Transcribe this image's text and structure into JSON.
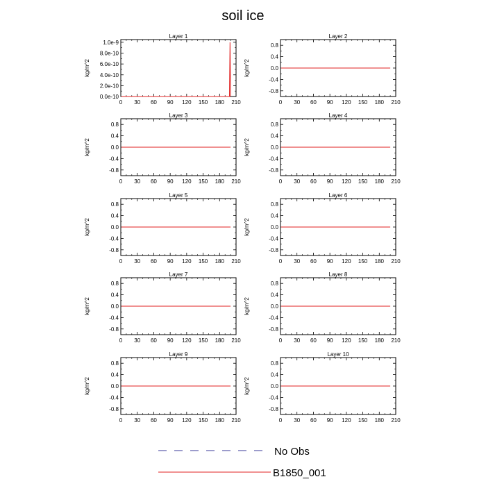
{
  "title": "soil ice",
  "legend": [
    {
      "label": "No Obs",
      "color": "#3a3a9a",
      "style": "dashed"
    },
    {
      "label": "B1850_001",
      "color": "#e02020",
      "style": "solid"
    }
  ],
  "chart_data": [
    {
      "type": "line",
      "title": "Layer 1",
      "ylabel": "kg/m^2",
      "xlim": [
        0,
        210
      ],
      "xticks": [
        0,
        30,
        60,
        90,
        120,
        150,
        180,
        210
      ],
      "ylim": [
        0,
        1.05e-09
      ],
      "yticks": [
        0,
        2e-10,
        4e-10,
        6e-10,
        8e-10,
        1e-09
      ],
      "ytick_labels": [
        "0.0e-10",
        "2.0e-10",
        "4.0e-10",
        "6.0e-10",
        "8.0e-10",
        "1.0e-9"
      ],
      "series": [
        {
          "name": "B1850_001",
          "x": [
            1,
            195,
            196,
            197,
            198,
            199,
            200
          ],
          "y": [
            0,
            0,
            0,
            0,
            0,
            1e-09,
            0
          ]
        }
      ]
    },
    {
      "type": "line",
      "title": "Layer 2",
      "ylabel": "kg/m^2",
      "xlim": [
        0,
        210
      ],
      "xticks": [
        0,
        30,
        60,
        90,
        120,
        150,
        180,
        210
      ],
      "ylim": [
        -1,
        1
      ],
      "yticks": [
        -0.8,
        -0.4,
        0,
        0.4,
        0.8
      ],
      "ytick_labels": [
        "-0.8",
        "-0.4",
        "0.0",
        "0.4",
        "0.8"
      ],
      "series": [
        {
          "name": "B1850_001",
          "x": [
            1,
            200
          ],
          "y": [
            0,
            0
          ]
        }
      ]
    },
    {
      "type": "line",
      "title": "Layer 3",
      "ylabel": "kg/m^2",
      "xlim": [
        0,
        210
      ],
      "xticks": [
        0,
        30,
        60,
        90,
        120,
        150,
        180,
        210
      ],
      "ylim": [
        -1,
        1
      ],
      "yticks": [
        -0.8,
        -0.4,
        0,
        0.4,
        0.8
      ],
      "ytick_labels": [
        "-0.8",
        "-0.4",
        "0.0",
        "0.4",
        "0.8"
      ],
      "series": [
        {
          "name": "B1850_001",
          "x": [
            1,
            200
          ],
          "y": [
            0,
            0
          ]
        }
      ]
    },
    {
      "type": "line",
      "title": "Layer 4",
      "ylabel": "kg/m^2",
      "xlim": [
        0,
        210
      ],
      "xticks": [
        0,
        30,
        60,
        90,
        120,
        150,
        180,
        210
      ],
      "ylim": [
        -1,
        1
      ],
      "yticks": [
        -0.8,
        -0.4,
        0,
        0.4,
        0.8
      ],
      "ytick_labels": [
        "-0.8",
        "-0.4",
        "0.0",
        "0.4",
        "0.8"
      ],
      "series": [
        {
          "name": "B1850_001",
          "x": [
            1,
            200
          ],
          "y": [
            0,
            0
          ]
        }
      ]
    },
    {
      "type": "line",
      "title": "Layer 5",
      "ylabel": "kg/m^2",
      "xlim": [
        0,
        210
      ],
      "xticks": [
        0,
        30,
        60,
        90,
        120,
        150,
        180,
        210
      ],
      "ylim": [
        -1,
        1
      ],
      "yticks": [
        -0.8,
        -0.4,
        0,
        0.4,
        0.8
      ],
      "ytick_labels": [
        "-0.8",
        "-0.4",
        "0.0",
        "0.4",
        "0.8"
      ],
      "series": [
        {
          "name": "B1850_001",
          "x": [
            1,
            200
          ],
          "y": [
            0,
            0
          ]
        }
      ]
    },
    {
      "type": "line",
      "title": "Layer 6",
      "ylabel": "kg/m^2",
      "xlim": [
        0,
        210
      ],
      "xticks": [
        0,
        30,
        60,
        90,
        120,
        150,
        180,
        210
      ],
      "ylim": [
        -1,
        1
      ],
      "yticks": [
        -0.8,
        -0.4,
        0,
        0.4,
        0.8
      ],
      "ytick_labels": [
        "-0.8",
        "-0.4",
        "0.0",
        "0.4",
        "0.8"
      ],
      "series": [
        {
          "name": "B1850_001",
          "x": [
            1,
            200
          ],
          "y": [
            0,
            0
          ]
        }
      ]
    },
    {
      "type": "line",
      "title": "Layer 7",
      "ylabel": "kg/m^2",
      "xlim": [
        0,
        210
      ],
      "xticks": [
        0,
        30,
        60,
        90,
        120,
        150,
        180,
        210
      ],
      "ylim": [
        -1,
        1
      ],
      "yticks": [
        -0.8,
        -0.4,
        0,
        0.4,
        0.8
      ],
      "ytick_labels": [
        "-0.8",
        "-0.4",
        "0.0",
        "0.4",
        "0.8"
      ],
      "series": [
        {
          "name": "B1850_001",
          "x": [
            1,
            200
          ],
          "y": [
            0,
            0
          ]
        }
      ]
    },
    {
      "type": "line",
      "title": "Layer 8",
      "ylabel": "kg/m^2",
      "xlim": [
        0,
        210
      ],
      "xticks": [
        0,
        30,
        60,
        90,
        120,
        150,
        180,
        210
      ],
      "ylim": [
        -1,
        1
      ],
      "yticks": [
        -0.8,
        -0.4,
        0,
        0.4,
        0.8
      ],
      "ytick_labels": [
        "-0.8",
        "-0.4",
        "0.0",
        "0.4",
        "0.8"
      ],
      "series": [
        {
          "name": "B1850_001",
          "x": [
            1,
            200
          ],
          "y": [
            0,
            0
          ]
        }
      ]
    },
    {
      "type": "line",
      "title": "Layer 9",
      "ylabel": "kg/m^2",
      "xlim": [
        0,
        210
      ],
      "xticks": [
        0,
        30,
        60,
        90,
        120,
        150,
        180,
        210
      ],
      "ylim": [
        -1,
        1
      ],
      "yticks": [
        -0.8,
        -0.4,
        0,
        0.4,
        0.8
      ],
      "ytick_labels": [
        "-0.8",
        "-0.4",
        "0.0",
        "0.4",
        "0.8"
      ],
      "series": [
        {
          "name": "B1850_001",
          "x": [
            1,
            200
          ],
          "y": [
            0,
            0
          ]
        }
      ]
    },
    {
      "type": "line",
      "title": "Layer 10",
      "ylabel": "kg/m^2",
      "xlim": [
        0,
        210
      ],
      "xticks": [
        0,
        30,
        60,
        90,
        120,
        150,
        180,
        210
      ],
      "ylim": [
        -1,
        1
      ],
      "yticks": [
        -0.8,
        -0.4,
        0,
        0.4,
        0.8
      ],
      "ytick_labels": [
        "-0.8",
        "-0.4",
        "0.0",
        "0.4",
        "0.8"
      ],
      "series": [
        {
          "name": "B1850_001",
          "x": [
            1,
            200
          ],
          "y": [
            0,
            0
          ]
        }
      ]
    }
  ]
}
